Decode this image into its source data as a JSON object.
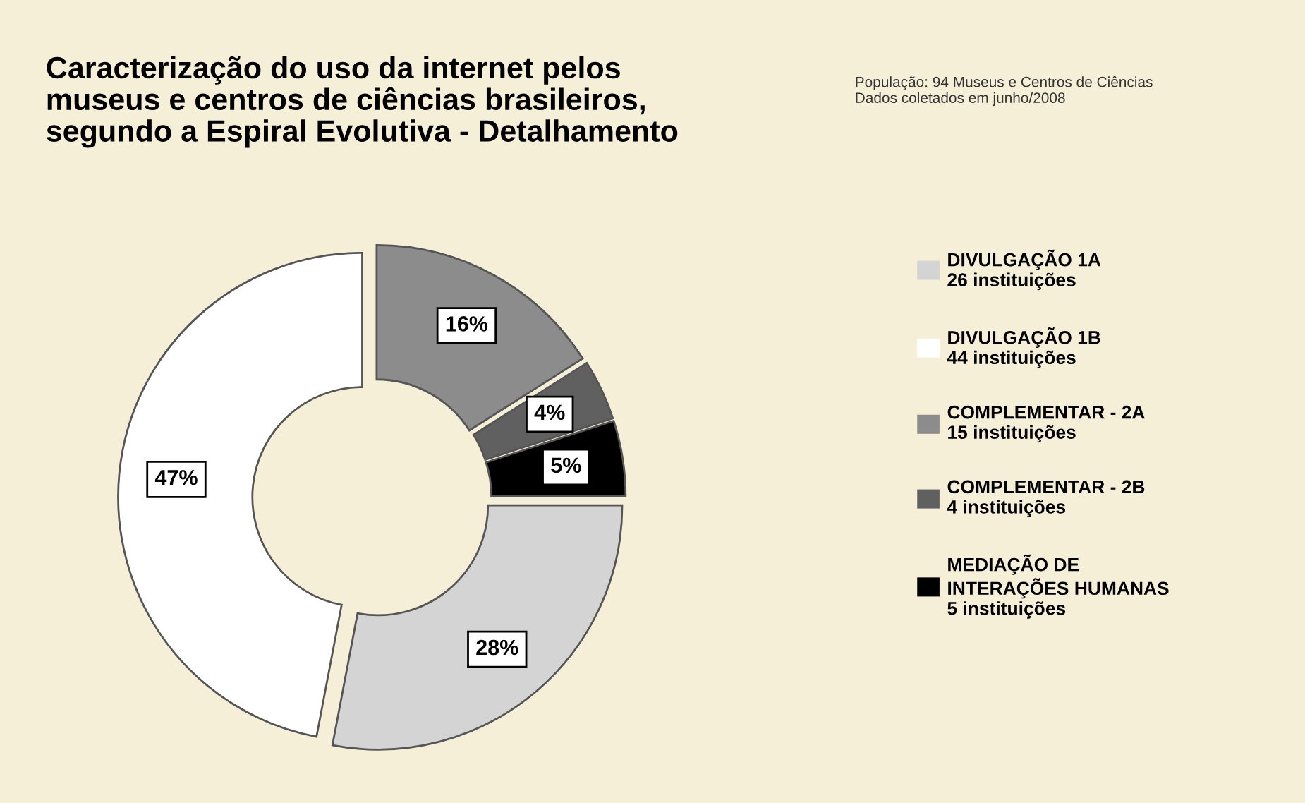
{
  "chart_data": {
    "type": "donut",
    "title": "Caracterização do uso da internet pelos\nmuseus e centros de ciências brasileiros,\nsegundo a Espiral Evolutiva - Detalhamento",
    "annotations": [
      "População: 94 Museus e Centros de Ciências\nDados coletados em junho/2008"
    ],
    "categories": [
      "DIVULGAÇÃO 1A\n26 instituições",
      "DIVULGAÇÃO 1B\n44 instituições",
      "COMPLEMENTAR - 2A\n15 instituições",
      "COMPLEMENTAR - 2B\n4 instituições",
      "MEDIAÇÃO DE\nINTERAÇÕES HUMANAS\n5 instituições"
    ],
    "values": [
      28,
      47,
      16,
      4,
      5
    ],
    "value_labels": [
      "28%",
      "47%",
      "16%",
      "4%",
      "5%"
    ],
    "colors": [
      "#d4d4d4",
      "#ffffff",
      "#8c8c8c",
      "#606060",
      "#000000"
    ],
    "legend": "right"
  }
}
